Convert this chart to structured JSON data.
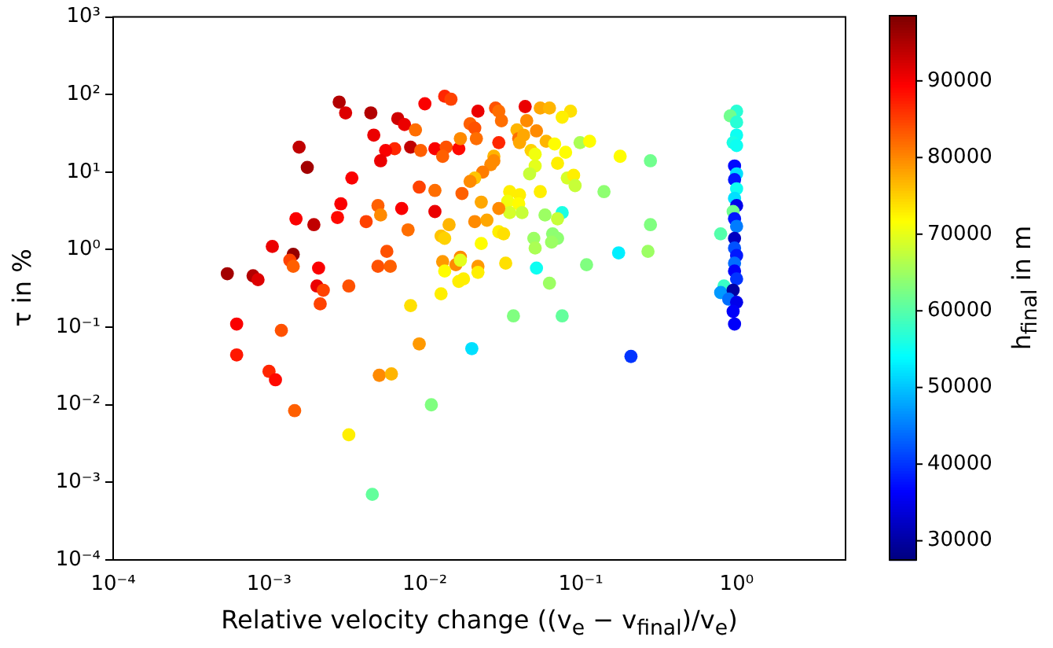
{
  "chart_data": {
    "type": "scatter",
    "xlabel": "Relative velocity change ((v$_{e}$ − v$_{final}$)/v$_{e}$)",
    "ylabel": "τ in %",
    "clabel": "h$_{final}$ in m",
    "log": "xy",
    "marker": "circle",
    "xlim": [
      0.0001,
      5
    ],
    "ylim": [
      0.0001,
      1000
    ],
    "xticks": [
      {
        "value": 0.0001,
        "label": "10⁻⁴"
      },
      {
        "value": 0.001,
        "label": "10⁻³"
      },
      {
        "value": 0.01,
        "label": "10⁻²"
      },
      {
        "value": 0.1,
        "label": "10⁻¹"
      },
      {
        "value": 1,
        "label": "10⁰"
      }
    ],
    "yticks": [
      {
        "value": 0.0001,
        "label": "10⁻⁴"
      },
      {
        "value": 0.001,
        "label": "10⁻³"
      },
      {
        "value": 0.01,
        "label": "10⁻²"
      },
      {
        "value": 0.1,
        "label": "10⁻¹"
      },
      {
        "value": 1,
        "label": "10⁰"
      },
      {
        "value": 10,
        "label": "10¹"
      },
      {
        "value": 100,
        "label": "10²"
      },
      {
        "value": 1000,
        "label": "10³"
      }
    ],
    "clim": [
      27500,
      98500
    ],
    "cticks": [
      30000,
      40000,
      50000,
      60000,
      70000,
      80000,
      90000
    ],
    "x": [
      0.00282,
      0.0031,
      0.0045,
      0.0067,
      0.0074,
      0.0087,
      0.0047,
      0.00156,
      0.00176,
      0.0064,
      0.0056,
      0.0081,
      0.0052,
      0.0034,
      0.0092,
      0.00289,
      0.00275,
      0.00149,
      0.00194,
      0.005,
      0.0052,
      0.0071,
      0.0042,
      0.0078,
      0.00105,
      0.00143,
      0.00136,
      0.00143,
      0.00208,
      0.0057,
      0.005,
      0.006,
      0.00054,
      0.00079,
      0.00085,
      0.00203,
      0.00223,
      0.00325,
      0.00213,
      0.0081,
      0.00062,
      0.0012,
      0.00062,
      0.0092,
      0.001,
      0.0011,
      0.00146,
      0.00325,
      0.0051,
      0.0061,
      0.02,
      0.011,
      0.0046,
      0.01,
      0.0134,
      0.0147,
      0.0094,
      0.0116,
      0.0137,
      0.013,
      0.0165,
      0.0169,
      0.0219,
      0.0284,
      0.0298,
      0.031,
      0.0195,
      0.0209,
      0.0214,
      0.0298,
      0.039,
      0.04,
      0.0405,
      0.043,
      0.044,
      0.045,
      0.052,
      0.055,
      0.063,
      0.086,
      0.076,
      0.06,
      0.068,
      0.099,
      0.114,
      0.0277,
      0.0277,
      0.048,
      0.051,
      0.08,
      0.071,
      0.051,
      0.047,
      0.0265,
      0.0235,
      0.0209,
      0.0195,
      0.082,
      0.09,
      0.092,
      0.141,
      0.179,
      0.28,
      0.0116,
      0.0173,
      0.023,
      0.035,
      0.0405,
      0.055,
      0.034,
      0.04,
      0.035,
      0.042,
      0.0298,
      0.0116,
      0.0143,
      0.0209,
      0.025,
      0.0298,
      0.032,
      0.023,
      0.0127,
      0.0134,
      0.059,
      0.076,
      0.071,
      0.05,
      0.066,
      0.071,
      0.065,
      0.051,
      0.28,
      0.013,
      0.0169,
      0.0158,
      0.0169,
      0.0134,
      0.0219,
      0.0219,
      0.033,
      0.0165,
      0.0177,
      0.0127,
      0.052,
      0.063,
      0.109,
      0.175,
      0.27,
      0.037,
      0.076,
      0.21,
      1,
      0.91,
      1,
      1,
      0.95,
      1,
      0.97,
      1,
      0.97,
      1,
      0.97,
      1,
      0.95,
      0.97,
      1,
      0.97,
      0.79,
      0.97,
      1,
      0.97,
      0.97,
      1,
      0.83,
      0.79,
      0.95,
      0.89,
      1,
      0.95,
      0.97
    ],
    "values": [
      80,
      58,
      58,
      49,
      41,
      35,
      30,
      21,
      11.5,
      20,
      19,
      21,
      14,
      8.4,
      6.4,
      3.9,
      2.6,
      2.5,
      2.1,
      3.7,
      2.8,
      3.4,
      2.3,
      1.8,
      1.1,
      0.87,
      0.73,
      0.61,
      0.58,
      0.95,
      0.61,
      0.61,
      0.49,
      0.46,
      0.41,
      0.34,
      0.3,
      0.34,
      0.2,
      0.19,
      0.11,
      0.091,
      0.044,
      0.061,
      0.027,
      0.021,
      0.0084,
      0.0041,
      0.024,
      0.025,
      0.053,
      0.01,
      0.0007,
      76,
      95,
      87,
      19,
      20,
      21,
      16,
      20,
      27,
      61,
      67,
      61,
      46,
      42,
      37,
      27,
      24,
      35,
      27,
      24,
      30,
      70,
      46,
      34,
      67,
      67,
      61,
      51,
      25,
      23,
      24,
      25,
      16,
      14,
      19,
      17,
      18,
      13,
      12,
      9.5,
      12.5,
      10,
      8.4,
      7.6,
      8.4,
      9.1,
      6.7,
      5.6,
      16,
      14,
      5.8,
      5.3,
      4.1,
      5.6,
      5.1,
      5.6,
      4.2,
      3.9,
      3,
      3,
      3.4,
      3.1,
      2.1,
      2.3,
      2.4,
      1.7,
      1.6,
      1.2,
      1.5,
      1.4,
      2.8,
      3,
      2.5,
      1.4,
      1.6,
      1.4,
      1.25,
      1.05,
      2.1,
      0.7,
      0.8,
      0.64,
      0.73,
      0.53,
      0.61,
      0.51,
      0.67,
      0.39,
      0.42,
      0.27,
      0.58,
      0.37,
      0.64,
      0.91,
      0.95,
      0.14,
      0.14,
      0.042,
      61,
      53,
      44,
      30,
      24,
      22,
      12,
      9.5,
      8,
      6.1,
      4.6,
      3.7,
      3.1,
      2.5,
      2,
      1.4,
      1.6,
      1.05,
      0.84,
      0.67,
      0.53,
      0.42,
      0.34,
      0.28,
      0.3,
      0.23,
      0.21,
      0.16,
      0.11
    ],
    "cvalues": [
      95000,
      92000,
      95000,
      93000,
      91000,
      82000,
      91000,
      94000,
      96000,
      87000,
      90000,
      94000,
      91000,
      90000,
      85000,
      90000,
      89000,
      90000,
      94000,
      83000,
      80000,
      90000,
      85000,
      82000,
      91000,
      97000,
      85000,
      83000,
      90000,
      84000,
      84000,
      83000,
      96000,
      95000,
      92000,
      91000,
      85000,
      84000,
      85000,
      74000,
      90000,
      84000,
      88000,
      79000,
      87000,
      89000,
      83000,
      73000,
      80000,
      77000,
      52000,
      63000,
      61000,
      90000,
      87000,
      85000,
      83000,
      90000,
      84000,
      83000,
      89000,
      80000,
      91000,
      84000,
      82000,
      82000,
      83000,
      84000,
      82000,
      87000,
      77000,
      82000,
      78000,
      78000,
      91000,
      80000,
      80000,
      78000,
      77000,
      74000,
      73000,
      77000,
      72000,
      66000,
      72000,
      77000,
      80000,
      75000,
      71000,
      72000,
      73000,
      70000,
      68000,
      80000,
      81000,
      76000,
      80000,
      69000,
      73000,
      68000,
      64000,
      72000,
      62000,
      82000,
      83000,
      78000,
      73000,
      73000,
      73000,
      71000,
      72000,
      69000,
      68000,
      80000,
      91000,
      77000,
      80000,
      78000,
      73000,
      74000,
      72000,
      76000,
      75000,
      65000,
      56000,
      68000,
      65000,
      64000,
      64000,
      65000,
      66000,
      63000,
      79000,
      80000,
      80000,
      70000,
      72000,
      79000,
      73000,
      74000,
      73000,
      73000,
      73000,
      55000,
      65000,
      63000,
      53000,
      65000,
      63000,
      61000,
      40000,
      57000,
      62000,
      57000,
      55000,
      56000,
      55000,
      37000,
      52000,
      38000,
      55000,
      52000,
      35000,
      62000,
      38000,
      45000,
      32000,
      60000,
      42000,
      38000,
      44000,
      36000,
      40000,
      58000,
      47000,
      30000,
      44000,
      35000,
      36000,
      36000
    ]
  }
}
